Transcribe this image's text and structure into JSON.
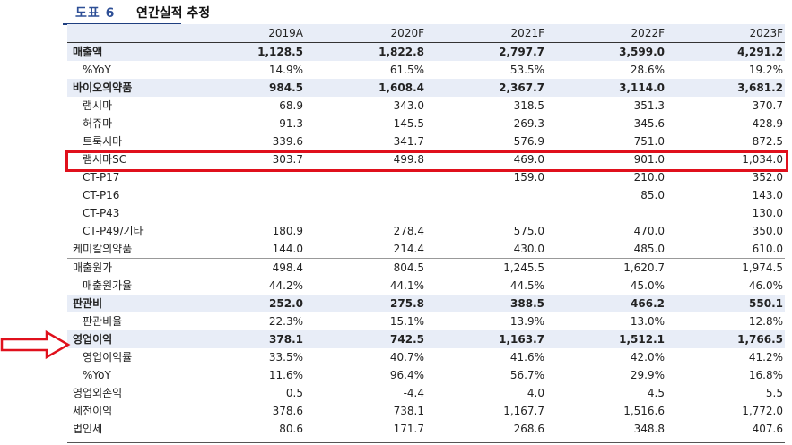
{
  "figure": {
    "number": "도표 6",
    "title": "연간실적 추정"
  },
  "columns": [
    "2019A",
    "2020F",
    "2021F",
    "2022F",
    "2023F"
  ],
  "rows": [
    {
      "label": "매출액",
      "bold": true,
      "values": [
        "1,128.5",
        "1,822.8",
        "2,797.7",
        "3,599.0",
        "4,291.2"
      ]
    },
    {
      "label": "%YoY",
      "values": [
        "14.9%",
        "61.5%",
        "53.5%",
        "28.6%",
        "19.2%"
      ]
    },
    {
      "label": "바이오의약품",
      "bold": true,
      "values": [
        "984.5",
        "1,608.4",
        "2,367.7",
        "3,114.0",
        "3,681.2"
      ]
    },
    {
      "label": "램시마",
      "values": [
        "68.9",
        "343.0",
        "318.5",
        "351.3",
        "370.7"
      ]
    },
    {
      "label": "허쥬마",
      "values": [
        "91.3",
        "145.5",
        "269.3",
        "345.6",
        "428.9"
      ]
    },
    {
      "label": "트룩시마",
      "values": [
        "339.6",
        "341.7",
        "576.9",
        "751.0",
        "872.5"
      ]
    },
    {
      "label": "램시마SC",
      "highlight": true,
      "values": [
        "303.7",
        "499.8",
        "469.0",
        "901.0",
        "1,034.0"
      ]
    },
    {
      "label": "CT-P17",
      "values": [
        "",
        "",
        "159.0",
        "210.0",
        "352.0"
      ]
    },
    {
      "label": "CT-P16",
      "values": [
        "",
        "",
        "",
        "85.0",
        "143.0"
      ]
    },
    {
      "label": "CT-P43",
      "values": [
        "",
        "",
        "",
        "",
        "130.0"
      ]
    },
    {
      "label": "CT-P49/기타",
      "values": [
        "180.9",
        "278.4",
        "575.0",
        "470.0",
        "350.0"
      ]
    },
    {
      "label": "케미칼의약품",
      "top": true,
      "values": [
        "144.0",
        "214.4",
        "430.0",
        "485.0",
        "610.0"
      ]
    },
    {
      "label": "매출원가",
      "sep": true,
      "top": true,
      "values": [
        "498.4",
        "804.5",
        "1,245.5",
        "1,620.7",
        "1,974.5"
      ]
    },
    {
      "label": "매출원가율",
      "values": [
        "44.2%",
        "44.1%",
        "44.5%",
        "45.0%",
        "46.0%"
      ]
    },
    {
      "label": "판관비",
      "bold": true,
      "values": [
        "252.0",
        "275.8",
        "388.5",
        "466.2",
        "550.1"
      ]
    },
    {
      "label": "판관비율",
      "values": [
        "22.3%",
        "15.1%",
        "13.9%",
        "13.0%",
        "12.8%"
      ]
    },
    {
      "label": "영업이익",
      "bold": true,
      "values": [
        "378.1",
        "742.5",
        "1,163.7",
        "1,512.1",
        "1,766.5"
      ]
    },
    {
      "label": "영업이익률",
      "values": [
        "33.5%",
        "40.7%",
        "41.6%",
        "42.0%",
        "41.2%"
      ]
    },
    {
      "label": "%YoY",
      "values": [
        "11.6%",
        "96.4%",
        "56.7%",
        "29.9%",
        "16.8%"
      ]
    },
    {
      "label": "영업외손익",
      "top": true,
      "values": [
        "0.5",
        "-4.4",
        "4.0",
        "4.5",
        "5.5"
      ]
    },
    {
      "label": "세전이익",
      "top": true,
      "values": [
        "378.6",
        "738.1",
        "1,167.7",
        "1,516.6",
        "1,772.0"
      ]
    },
    {
      "label": "법인세",
      "top": true,
      "values": [
        "80.6",
        "171.7",
        "268.6",
        "348.8",
        "407.6"
      ]
    }
  ],
  "colors": {
    "header_bg": "#e8edf7",
    "title_blue": "#2e4f96",
    "highlight_red": "#e0101c"
  }
}
